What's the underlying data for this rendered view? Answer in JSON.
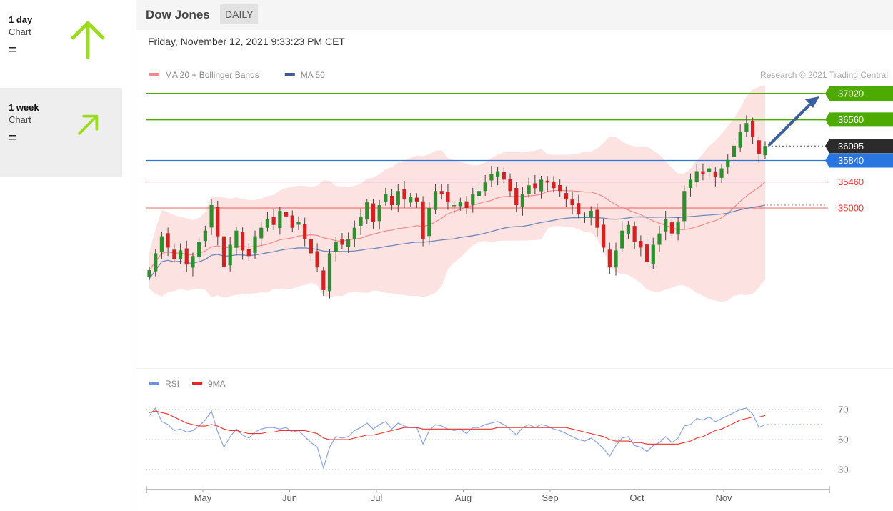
{
  "sidebar": {
    "items": [
      {
        "period": "1 day",
        "label": "Chart",
        "indicator": "=",
        "arrow": "up-arrow-icon",
        "color": "#9bdc1e"
      },
      {
        "period": "1 week",
        "label": "Chart",
        "indicator": "=",
        "arrow": "up-right-arrow-icon",
        "color": "#9bdc1e"
      }
    ]
  },
  "header": {
    "title": "Dow Jones",
    "interval": "DAILY"
  },
  "date": "Friday, November 12, 2021 9:33:23 PM CET",
  "chart_data": {
    "type": "candlestick",
    "legend": [
      {
        "name": "MA 20 + Bollinger Bands",
        "color": "#f48a8a"
      },
      {
        "name": "MA 50",
        "color": "#3d5a99"
      }
    ],
    "credit": "Research © 2021 Trading Central",
    "x_ticks": [
      "May",
      "Jun",
      "Jul",
      "Aug",
      "Sep",
      "Oct",
      "Nov"
    ],
    "levels": [
      {
        "value": 37020,
        "label": "37020",
        "color": "#4caa00",
        "kind": "target"
      },
      {
        "value": 36560,
        "label": "36560",
        "color": "#4caa00",
        "kind": "target"
      },
      {
        "value": 36095,
        "label": "36095",
        "color": "#2b2b2b",
        "kind": "last"
      },
      {
        "value": 35840,
        "label": "35840",
        "color": "#2a76e0",
        "kind": "pivot"
      },
      {
        "value": 35460,
        "label": "35460",
        "color": "#ee3333",
        "kind": "support"
      },
      {
        "value": 35000,
        "label": "35000",
        "color": "#ee3333",
        "kind": "support"
      }
    ],
    "closes": [
      33900,
      34200,
      34500,
      34300,
      34100,
      34250,
      34000,
      34150,
      34400,
      34600,
      35050,
      34500,
      33950,
      34350,
      34600,
      34250,
      34150,
      34500,
      34650,
      34800,
      34700,
      34950,
      34850,
      34650,
      34750,
      34450,
      34200,
      33950,
      33550,
      34200,
      34400,
      34350,
      34450,
      34650,
      34850,
      35100,
      34750,
      35050,
      35250,
      35050,
      35300,
      35150,
      35200,
      35100,
      34450,
      35000,
      35300,
      35250,
      35100,
      35050,
      35100,
      35000,
      35250,
      35300,
      35450,
      35600,
      35650,
      35500,
      35300,
      35050,
      35250,
      35400,
      35350,
      35500,
      35450,
      35350,
      35300,
      35150,
      35050,
      34900,
      34850,
      34950,
      34650,
      34300,
      33950,
      34250,
      34600,
      34700,
      34400,
      34300,
      34050,
      34350,
      34550,
      34800,
      34550,
      34750,
      35300,
      35500,
      35650,
      35600,
      35700,
      35550,
      35700,
      35850,
      36100,
      36350,
      36500,
      36250,
      35950,
      36095
    ],
    "rsi": [
      66,
      71,
      62,
      60,
      56,
      57,
      55,
      56,
      59,
      63,
      69,
      55,
      45,
      52,
      57,
      53,
      51,
      55,
      57,
      58,
      58,
      57,
      58,
      55,
      56,
      52,
      48,
      45,
      31,
      45,
      52,
      51,
      52,
      56,
      58,
      61,
      57,
      60,
      62,
      57,
      61,
      59,
      58,
      58,
      47,
      56,
      60,
      59,
      57,
      56,
      57,
      54,
      58,
      58,
      60,
      61,
      62,
      60,
      57,
      53,
      58,
      60,
      58,
      60,
      59,
      57,
      56,
      54,
      52,
      50,
      49,
      51,
      48,
      44,
      39,
      46,
      51,
      52,
      46,
      45,
      42,
      46,
      48,
      52,
      48,
      51,
      59,
      60,
      64,
      63,
      65,
      62,
      64,
      66,
      68,
      70,
      71,
      67,
      58,
      60
    ],
    "rsi_ma9": [
      68,
      69,
      68,
      67,
      65,
      63,
      61,
      60,
      59,
      59,
      60,
      59,
      57,
      56,
      56,
      55,
      54,
      54,
      54,
      55,
      55,
      56,
      56,
      56,
      56,
      56,
      55,
      54,
      51,
      50,
      50,
      50,
      50,
      51,
      52,
      53,
      53,
      54,
      55,
      56,
      57,
      58,
      58,
      58,
      57,
      57,
      57,
      57,
      57,
      57,
      57,
      57,
      57,
      57,
      57,
      57,
      58,
      58,
      58,
      58,
      58,
      58,
      58,
      58,
      58,
      58,
      58,
      58,
      57,
      56,
      55,
      54,
      53,
      52,
      50,
      49,
      49,
      49,
      48,
      48,
      47,
      47,
      47,
      47,
      47,
      47,
      48,
      49,
      51,
      52,
      54,
      56,
      57,
      59,
      61,
      63,
      64,
      65,
      65,
      66
    ],
    "rsi_levels": [
      70,
      50,
      30
    ],
    "rsi_legend": [
      {
        "name": "RSI",
        "color": "#6d8fe0"
      },
      {
        "name": "9MA",
        "color": "#ee2222"
      }
    ]
  }
}
